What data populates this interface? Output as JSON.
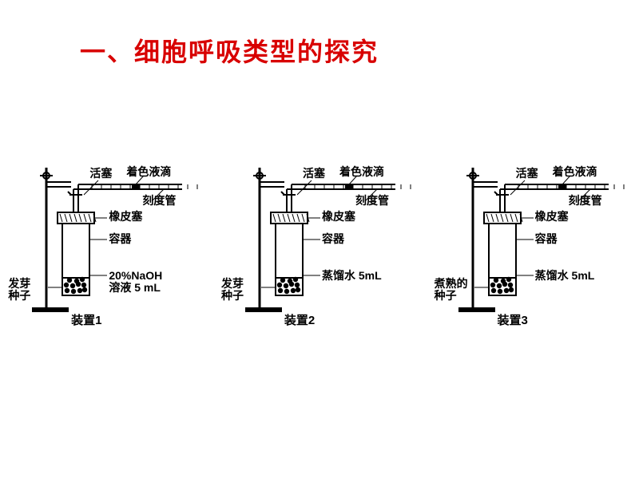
{
  "title": {
    "text": "一、细胞呼吸类型的探究",
    "color": "#d80000",
    "fontsize": 32
  },
  "label_style": {
    "fontsize": 14,
    "color": "#000000"
  },
  "device_label_style": {
    "fontsize": 15,
    "color": "#000000"
  },
  "diagram_style": {
    "stroke": "#000000",
    "stroke_width": 2,
    "fill_bg": "#ffffff"
  },
  "common_labels": {
    "stopcock": "活塞",
    "colored_drop": "着色液滴",
    "graduated_tube": "刻度管",
    "rubber_stopper": "橡皮塞",
    "container": "容器"
  },
  "devices": [
    {
      "name": "装置1",
      "seed_label": "发芽\n种子",
      "liquid_label": "20%NaOH\n溶液 5 mL"
    },
    {
      "name": "装置2",
      "seed_label": "发芽\n种子",
      "liquid_label": "蒸馏水 5mL"
    },
    {
      "name": "装置3",
      "seed_label": "煮熟的\n种子",
      "liquid_label": "蒸馏水 5mL"
    }
  ]
}
